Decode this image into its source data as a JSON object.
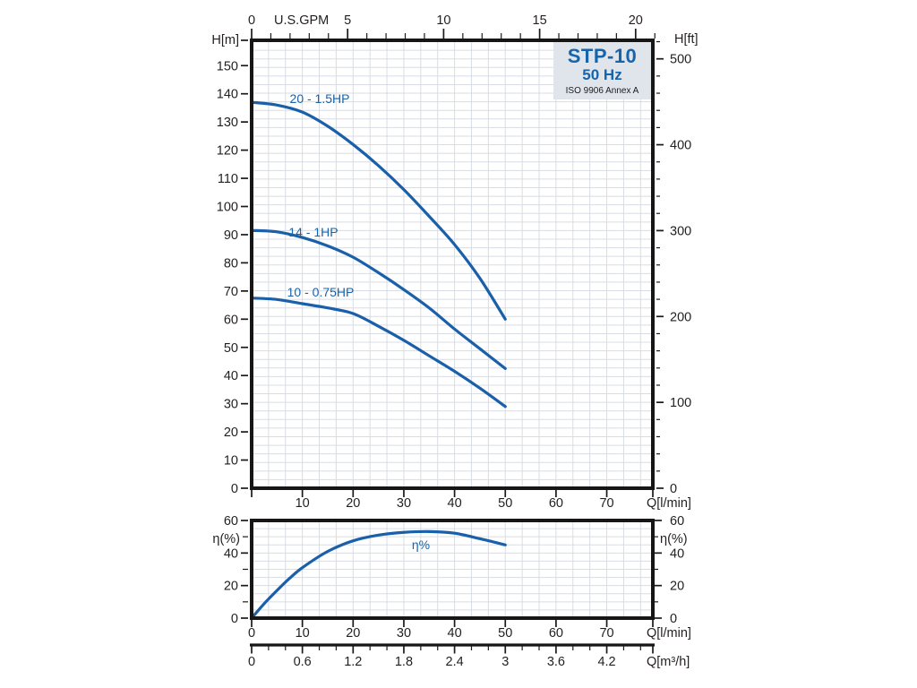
{
  "page": {
    "background": "#ffffff"
  },
  "title_box": {
    "model": "STP-10",
    "frequency": "50 Hz",
    "standard": "ISO 9906 Annex A",
    "bg": "#dfe5ea",
    "text_color": "#1763ac",
    "standard_color": "#1c1c1c"
  },
  "colors": {
    "curve": "#1a5fa9",
    "label_blue": "#1763ac",
    "axis": "#1a1a1a",
    "text": "#231f20",
    "grid": "#d8dde3"
  },
  "chart_data": [
    {
      "id": "head_flow",
      "type": "line",
      "title": "Pump head vs flow",
      "axes": {
        "top": {
          "label": "U.S.GPM",
          "major": [
            0,
            5,
            10,
            15,
            20
          ],
          "minor_step": 1,
          "minor_max": 21
        },
        "bottom": {
          "label": "Q[l/min]",
          "major": [
            0,
            10,
            20,
            30,
            40,
            50,
            60,
            70
          ],
          "labeled": [
            10,
            20,
            30,
            40,
            50,
            60,
            70
          ]
        },
        "left": {
          "label": "H[m]",
          "major": [
            0,
            10,
            20,
            30,
            40,
            50,
            60,
            70,
            80,
            90,
            100,
            110,
            120,
            130,
            140,
            150
          ]
        },
        "right": {
          "label": "H[ft]",
          "major": [
            0,
            100,
            200,
            300,
            400,
            500
          ],
          "minor_step": 20,
          "minor_max": 520
        }
      },
      "xlim_lmin": [
        0,
        79
      ],
      "ylim_m": [
        0,
        159
      ],
      "series": [
        {
          "name": "20 - 1.5HP",
          "x": [
            0,
            5,
            10,
            15,
            20,
            25,
            30,
            35,
            40,
            45,
            50
          ],
          "y": [
            137,
            136,
            133.5,
            128.5,
            122,
            114.5,
            106,
            96.5,
            86.5,
            74.5,
            60
          ]
        },
        {
          "name": "14 - 1HP",
          "x": [
            0,
            5,
            10,
            15,
            20,
            25,
            30,
            35,
            40,
            45,
            50
          ],
          "y": [
            91.5,
            91,
            89,
            86,
            82,
            76.5,
            70.5,
            64,
            56.5,
            49.5,
            42.5
          ]
        },
        {
          "name": "10 - 0.75HP",
          "x": [
            0,
            5,
            10,
            15,
            20,
            25,
            30,
            35,
            40,
            45,
            50
          ],
          "y": [
            67.5,
            67,
            65.5,
            64,
            62,
            57.5,
            52.5,
            47,
            41.5,
            35.5,
            29
          ]
        }
      ]
    },
    {
      "id": "efficiency",
      "type": "line",
      "title": "Pump efficiency vs flow",
      "axes": {
        "left": {
          "label": "η(%)",
          "major": [
            0,
            20,
            40,
            60
          ],
          "minor": [
            10,
            30,
            50
          ]
        },
        "right": {
          "label": "η(%)",
          "major": [
            0,
            20,
            40,
            60
          ],
          "minor": [
            10,
            30,
            50
          ]
        },
        "bottom": {
          "label": "Q[l/min]",
          "major": [
            0,
            10,
            20,
            30,
            40,
            50,
            60,
            70
          ],
          "labeled": [
            0,
            10,
            20,
            30,
            40,
            50,
            60,
            70
          ]
        }
      },
      "ylim_pct": [
        0,
        60
      ],
      "series": [
        {
          "name": "η%",
          "x": [
            0,
            2.5,
            5,
            7.5,
            10,
            15,
            20,
            25,
            30,
            35,
            40,
            45,
            50
          ],
          "y": [
            0,
            9,
            17,
            24.5,
            31,
            41,
            47.5,
            51,
            52.7,
            53.2,
            52.2,
            48.8,
            45
          ]
        }
      ]
    },
    {
      "id": "flow_conversion",
      "type": "axis",
      "label": "Q[m³/h]",
      "major": [
        0,
        0.6,
        1.2,
        1.8,
        2.4,
        3,
        3.6,
        4.2
      ],
      "major_labels": [
        "0",
        "0.6",
        "1.2",
        "1.8",
        "2.4",
        "3",
        "3.6",
        "4.2"
      ],
      "minor_step": 0.2,
      "lmin_per_unit": 16.6667
    }
  ]
}
